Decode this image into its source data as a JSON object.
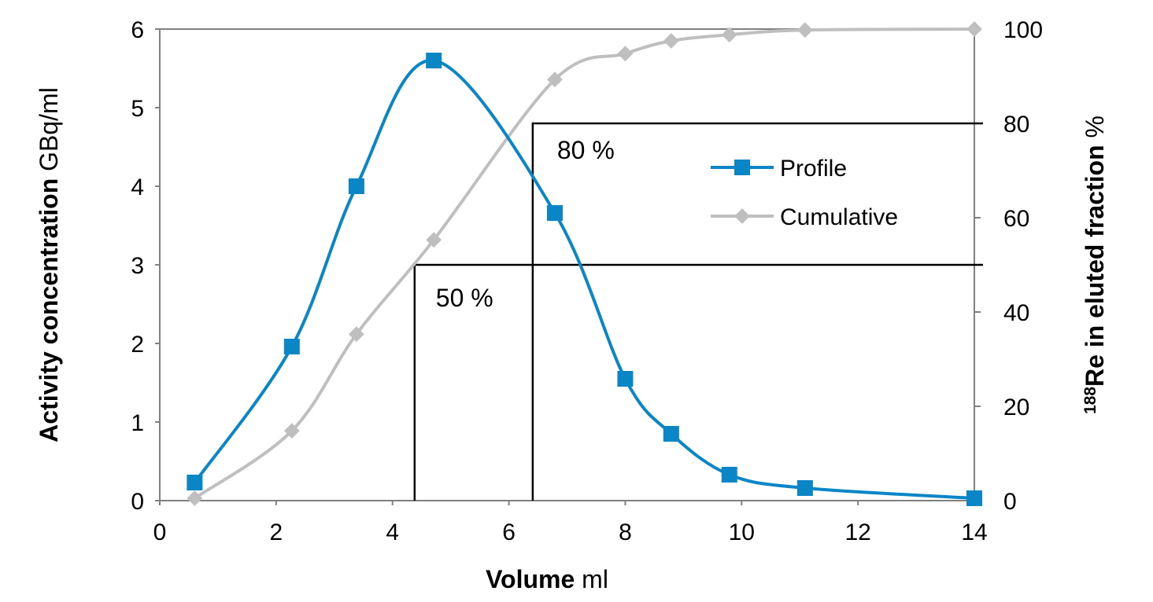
{
  "chart_data": {
    "type": "line",
    "xlabel_bold": "Volume",
    "xlabel_unit": "ml",
    "ylabel_left_bold": "Activity concentration",
    "ylabel_left_unit": "GBq/ml",
    "ylabel_right_sup": "188",
    "ylabel_right_bold": "Re in eluted fraction",
    "ylabel_right_unit": "%",
    "xlim": [
      0,
      14
    ],
    "ylim_left": [
      0,
      6
    ],
    "ylim_right": [
      0,
      100
    ],
    "xticks": [
      "0",
      "2",
      "4",
      "6",
      "8",
      "10",
      "12",
      "14"
    ],
    "yticks_left": [
      "0",
      "1",
      "2",
      "3",
      "4",
      "5",
      "6"
    ],
    "yticks_right": [
      "0",
      "20",
      "40",
      "60",
      "80",
      "100"
    ],
    "grid": false,
    "legend_position": "right-center",
    "series": [
      {
        "name": "Profile",
        "axis": "left",
        "color": "#0a86c7",
        "marker": "square",
        "x": [
          0.6,
          2.27,
          3.38,
          4.71,
          6.79,
          8.0,
          8.79,
          9.79,
          11.09,
          14.0
        ],
        "y": [
          0.23,
          1.96,
          4.0,
          5.6,
          3.66,
          1.55,
          0.85,
          0.33,
          0.16,
          0.03
        ]
      },
      {
        "name": "Cumulative",
        "axis": "right",
        "color": "#bfbfbf",
        "marker": "diamond",
        "x": [
          0.6,
          2.27,
          3.38,
          4.71,
          6.79,
          8.0,
          8.79,
          9.79,
          11.09,
          14.0
        ],
        "y": [
          0.5,
          14.8,
          35.3,
          55.3,
          89.3,
          94.8,
          97.5,
          98.8,
          99.8,
          100
        ]
      }
    ],
    "annotations": [
      {
        "label": "50 %",
        "x": 4.38,
        "y_right": 50
      },
      {
        "label": "80 %",
        "x": 6.41,
        "y_right": 80
      }
    ]
  }
}
